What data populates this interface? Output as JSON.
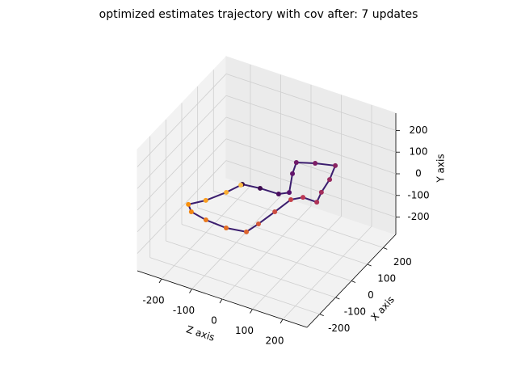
{
  "chart_data": {
    "type": "scatter3d",
    "title": "optimized estimates trajectory with cov after: 7 updates",
    "xlabel": "Z axis",
    "ylabel": "X axis",
    "zlabel": "Y axis",
    "xlim": [
      -280,
      280
    ],
    "ylim": [
      -280,
      280
    ],
    "zlim": [
      -280,
      280
    ],
    "xticks": [
      -200,
      -100,
      0,
      100,
      200
    ],
    "yticks": [
      -200,
      -100,
      0,
      100,
      200
    ],
    "zticks": [
      -200,
      -100,
      0,
      100,
      200
    ],
    "grid": true,
    "colormap": "inferno",
    "series": [
      {
        "x": [
          -79,
          -25,
          35,
          58,
          21,
          4,
          53,
          109,
          128,
          138,
          150,
          104,
          79,
          68,
          56,
          45,
          -15,
          -85,
          -141,
          -166,
          -132,
          -100,
          -81
        ],
        "y": [
          -2,
          7,
          9,
          32,
          123,
          180,
          205,
          225,
          153,
          82,
          30,
          31,
          2,
          -78,
          -158,
          -213,
          -226,
          -220,
          -205,
          -176,
          -131,
          -63,
          -8
        ],
        "z": [
          0,
          0,
          0,
          0,
          0,
          0,
          0,
          0,
          0,
          0,
          0,
          0,
          0,
          0,
          0,
          0,
          0,
          0,
          0,
          0,
          0,
          0,
          0
        ]
      }
    ]
  }
}
